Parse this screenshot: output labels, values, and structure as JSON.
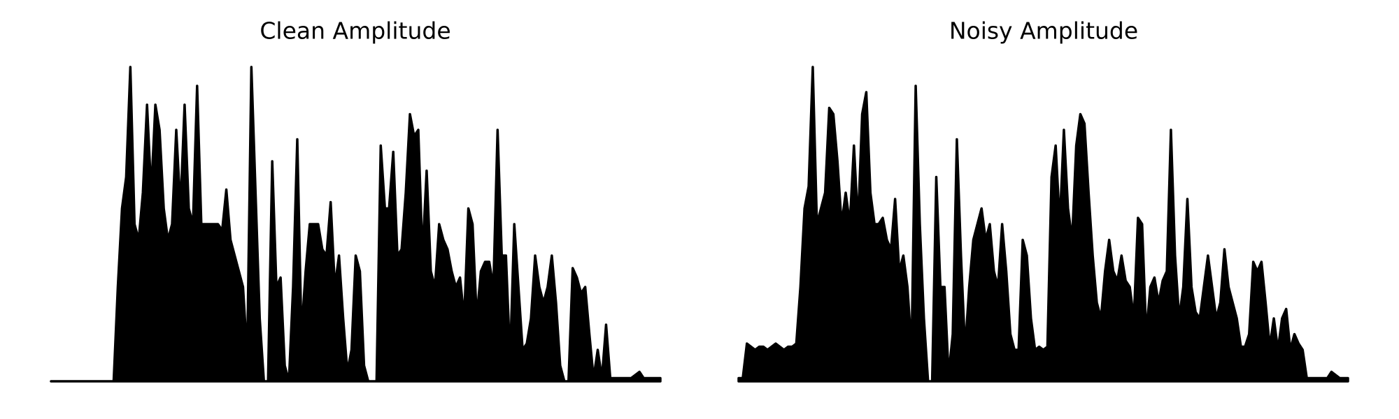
{
  "chart_data": [
    {
      "type": "area",
      "title": "Clean Amplitude",
      "color": "#000000",
      "ylim": [
        0,
        1
      ],
      "values": [
        0,
        0,
        0,
        0,
        0,
        0,
        0,
        0,
        0,
        0,
        0,
        0,
        0,
        0,
        0,
        0,
        0.3,
        0.55,
        0.65,
        1.0,
        0.5,
        0.45,
        0.6,
        0.88,
        0.6,
        0.88,
        0.8,
        0.55,
        0.45,
        0.5,
        0.8,
        0.55,
        0.88,
        0.55,
        0.5,
        0.94,
        0.5,
        0.5,
        0.5,
        0.5,
        0.5,
        0.48,
        0.61,
        0.45,
        0.4,
        0.35,
        0.3,
        0.08,
        1.0,
        0.6,
        0.2,
        0,
        0,
        0.7,
        0.3,
        0.33,
        0.05,
        0,
        0.3,
        0.77,
        0.15,
        0.35,
        0.5,
        0.5,
        0.5,
        0.42,
        0.4,
        0.57,
        0.3,
        0.4,
        0.2,
        0.03,
        0.1,
        0.4,
        0.35,
        0.05,
        0,
        0,
        0,
        0.75,
        0.55,
        0.55,
        0.73,
        0.4,
        0.42,
        0.6,
        0.85,
        0.78,
        0.8,
        0.4,
        0.67,
        0.35,
        0.3,
        0.5,
        0.45,
        0.42,
        0.35,
        0.3,
        0.33,
        0.2,
        0.55,
        0.5,
        0.2,
        0.35,
        0.38,
        0.38,
        0.3,
        0.8,
        0.4,
        0.4,
        0.07,
        0.5,
        0.3,
        0.1,
        0.12,
        0.2,
        0.4,
        0.3,
        0.25,
        0.3,
        0.4,
        0.25,
        0.05,
        0,
        0,
        0.36,
        0.33,
        0.28,
        0.3,
        0.15,
        0.01,
        0.1,
        0.01,
        0.18,
        0.01,
        0.01,
        0.01,
        0.01,
        0.01,
        0.01,
        0.02,
        0.03,
        0.01,
        0.01,
        0.01,
        0.01,
        0.01
      ]
    },
    {
      "type": "area",
      "title": "Noisy Amplitude",
      "color": "#000000",
      "ylim": [
        0,
        1
      ],
      "values": [
        0.01,
        0.01,
        0.12,
        0.11,
        0.1,
        0.11,
        0.11,
        0.1,
        0.11,
        0.12,
        0.11,
        0.1,
        0.11,
        0.11,
        0.12,
        0.3,
        0.55,
        0.62,
        1.0,
        0.5,
        0.55,
        0.6,
        0.87,
        0.85,
        0.7,
        0.5,
        0.6,
        0.5,
        0.75,
        0.5,
        0.85,
        0.92,
        0.6,
        0.5,
        0.5,
        0.52,
        0.45,
        0.42,
        0.58,
        0.35,
        0.4,
        0.3,
        0.1,
        0.94,
        0.5,
        0.2,
        0,
        0,
        0.65,
        0.3,
        0.3,
        0.02,
        0.15,
        0.77,
        0.4,
        0.1,
        0.3,
        0.45,
        0.5,
        0.55,
        0.45,
        0.5,
        0.35,
        0.3,
        0.5,
        0.35,
        0.15,
        0.1,
        0.1,
        0.45,
        0.4,
        0.2,
        0.1,
        0.11,
        0.1,
        0.11,
        0.65,
        0.75,
        0.5,
        0.8,
        0.55,
        0.45,
        0.75,
        0.85,
        0.82,
        0.6,
        0.4,
        0.25,
        0.2,
        0.35,
        0.45,
        0.35,
        0.32,
        0.4,
        0.32,
        0.3,
        0.2,
        0.52,
        0.5,
        0.15,
        0.3,
        0.33,
        0.25,
        0.32,
        0.35,
        0.8,
        0.4,
        0.2,
        0.3,
        0.58,
        0.3,
        0.22,
        0.2,
        0.3,
        0.4,
        0.3,
        0.2,
        0.25,
        0.42,
        0.3,
        0.25,
        0.2,
        0.11,
        0.11,
        0.15,
        0.38,
        0.35,
        0.38,
        0.25,
        0.11,
        0.2,
        0.1,
        0.2,
        0.23,
        0.1,
        0.15,
        0.12,
        0.1,
        0.01,
        0.01,
        0.01,
        0.01,
        0.01,
        0.01,
        0.03,
        0.02,
        0.01,
        0.01,
        0.01
      ]
    }
  ]
}
